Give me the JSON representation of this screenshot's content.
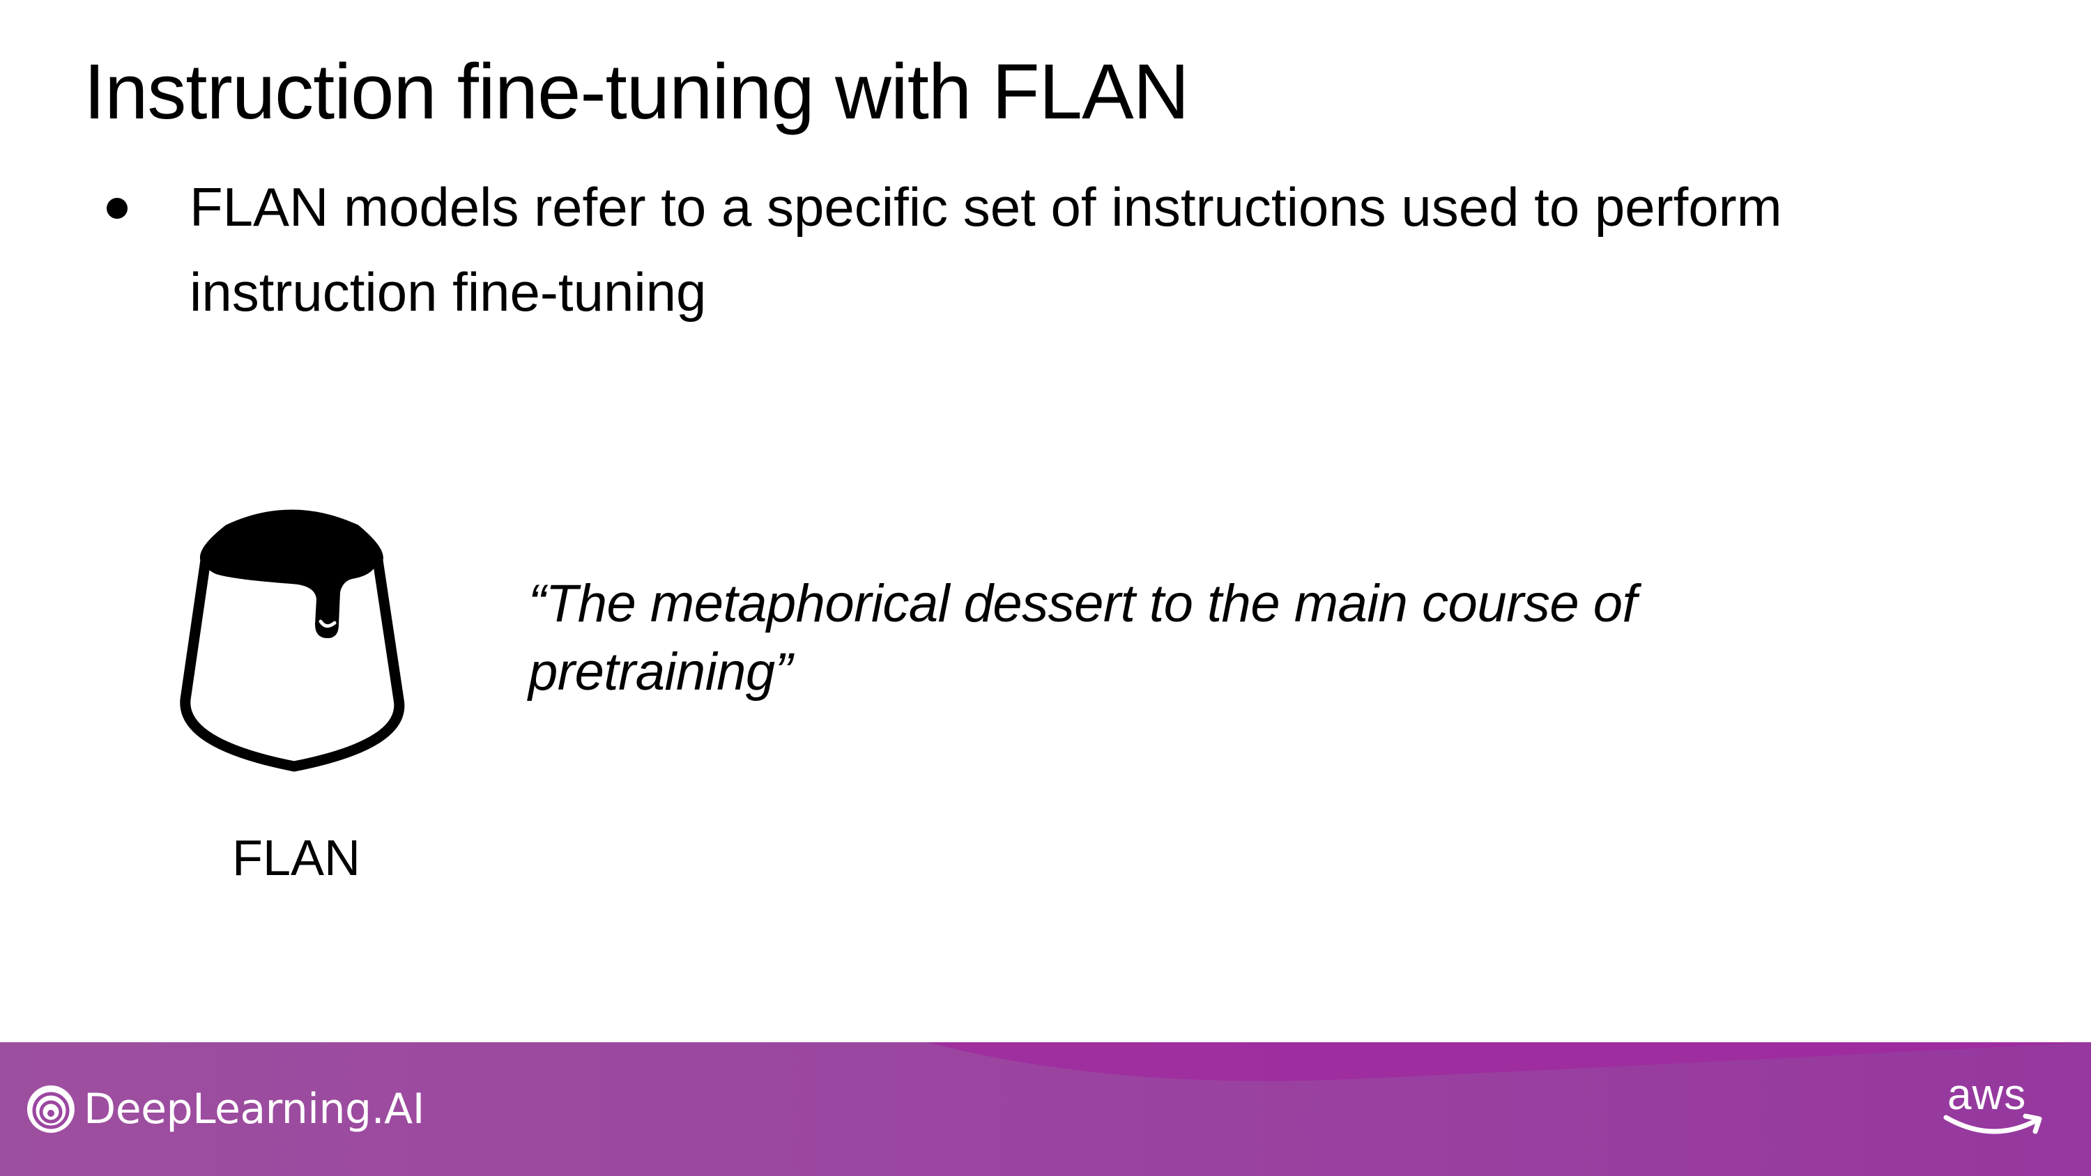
{
  "slide": {
    "title": "Instruction fine-tuning with FLAN",
    "bullets": [
      "FLAN models refer to a specific set of instructions used to perform instruction fine-tuning"
    ],
    "figure": {
      "label": "FLAN",
      "icon": "flan-dessert-icon"
    },
    "quote": "“The metaphorical dessert to the main course of pretraining”"
  },
  "footer": {
    "brand": "DeepLearning.AI",
    "partner": "aws",
    "colors": {
      "band_start": "#9d4f9f",
      "band_end": "#96389f",
      "text": "#ffffff"
    }
  }
}
